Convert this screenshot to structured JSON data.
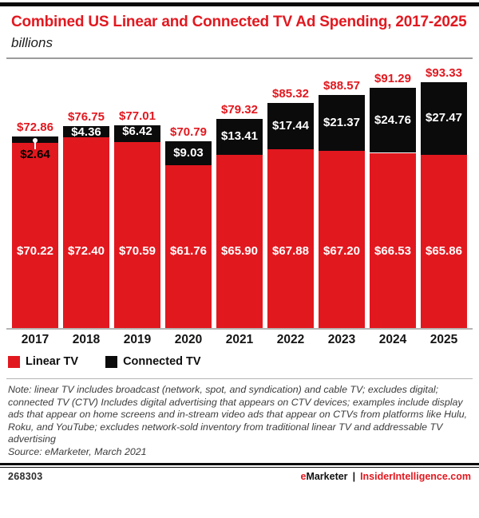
{
  "header": {
    "title": "Combined US Linear and Connected TV Ad Spending, 2017-2025",
    "subtitle": "billions"
  },
  "chart_data": {
    "type": "bar",
    "stacked": true,
    "title": "Combined US Linear and Connected TV Ad Spending, 2017-2025",
    "unit": "billions",
    "xlabel": "",
    "ylabel": "",
    "grid": false,
    "legend_position": "bottom",
    "categories": [
      "2017",
      "2018",
      "2019",
      "2020",
      "2021",
      "2022",
      "2023",
      "2024",
      "2025"
    ],
    "series": [
      {
        "name": "Linear TV",
        "color": "#e2181f",
        "values": [
          70.22,
          72.4,
          70.59,
          61.76,
          65.9,
          67.88,
          67.2,
          66.53,
          65.86
        ],
        "labels": [
          "$70.22",
          "$72.40",
          "$70.59",
          "$61.76",
          "$65.90",
          "$67.88",
          "$67.20",
          "$66.53",
          "$65.86"
        ]
      },
      {
        "name": "Connected TV",
        "color": "#0b0b0b",
        "values": [
          2.64,
          4.36,
          6.42,
          9.03,
          13.41,
          17.44,
          21.37,
          24.76,
          27.47
        ],
        "labels": [
          "$2.64",
          "$4.36",
          "$6.42",
          "$9.03",
          "$13.41",
          "$17.44",
          "$21.37",
          "$24.76",
          "$27.47"
        ]
      }
    ],
    "totals": [
      72.86,
      76.75,
      77.01,
      70.79,
      79.32,
      85.32,
      88.57,
      91.29,
      93.33
    ],
    "total_labels": [
      "$72.86",
      "$76.75",
      "$77.01",
      "$70.79",
      "$79.32",
      "$85.32",
      "$88.57",
      "$91.29",
      "$93.33"
    ],
    "ylim": [
      0,
      100
    ]
  },
  "legend": {
    "items": [
      {
        "label": "Linear TV",
        "color": "#e2181f"
      },
      {
        "label": "Connected TV",
        "color": "#0b0b0b"
      }
    ]
  },
  "footnote": {
    "note": "Note: linear TV includes broadcast (network, spot, and syndication) and cable TV; excludes digital; connected TV (CTV) Includes digital advertising that appears on CTV devices; examples include display ads that appear on home screens and in-stream video ads that appear on CTVs from platforms like Hulu, Roku, and YouTube; excludes network-sold inventory from traditional linear TV and addressable TV advertising",
    "source": "Source: eMarketer, March 2021"
  },
  "footer": {
    "id": "268303",
    "brand_e": "e",
    "brand_rest": "Marketer",
    "separator": "|",
    "site": "InsiderIntelligence.com"
  }
}
